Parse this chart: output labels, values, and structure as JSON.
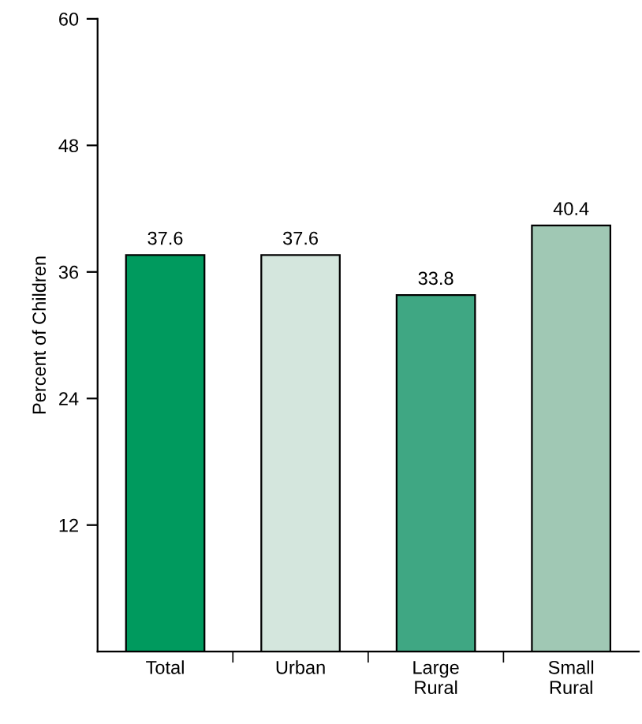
{
  "chart_data": {
    "type": "bar",
    "ylabel": "Percent of Children",
    "categories": [
      "Total",
      "Urban",
      "Large\nRural",
      "Small\nRural"
    ],
    "values": [
      37.6,
      37.6,
      33.8,
      40.4
    ],
    "colors": [
      "#009a5e",
      "#d4e6dd",
      "#3fa783",
      "#a0c8b4"
    ],
    "ylim": [
      0,
      60
    ],
    "yticks": [
      12,
      24,
      36,
      48,
      60
    ],
    "grid": false,
    "data_labels": true
  }
}
